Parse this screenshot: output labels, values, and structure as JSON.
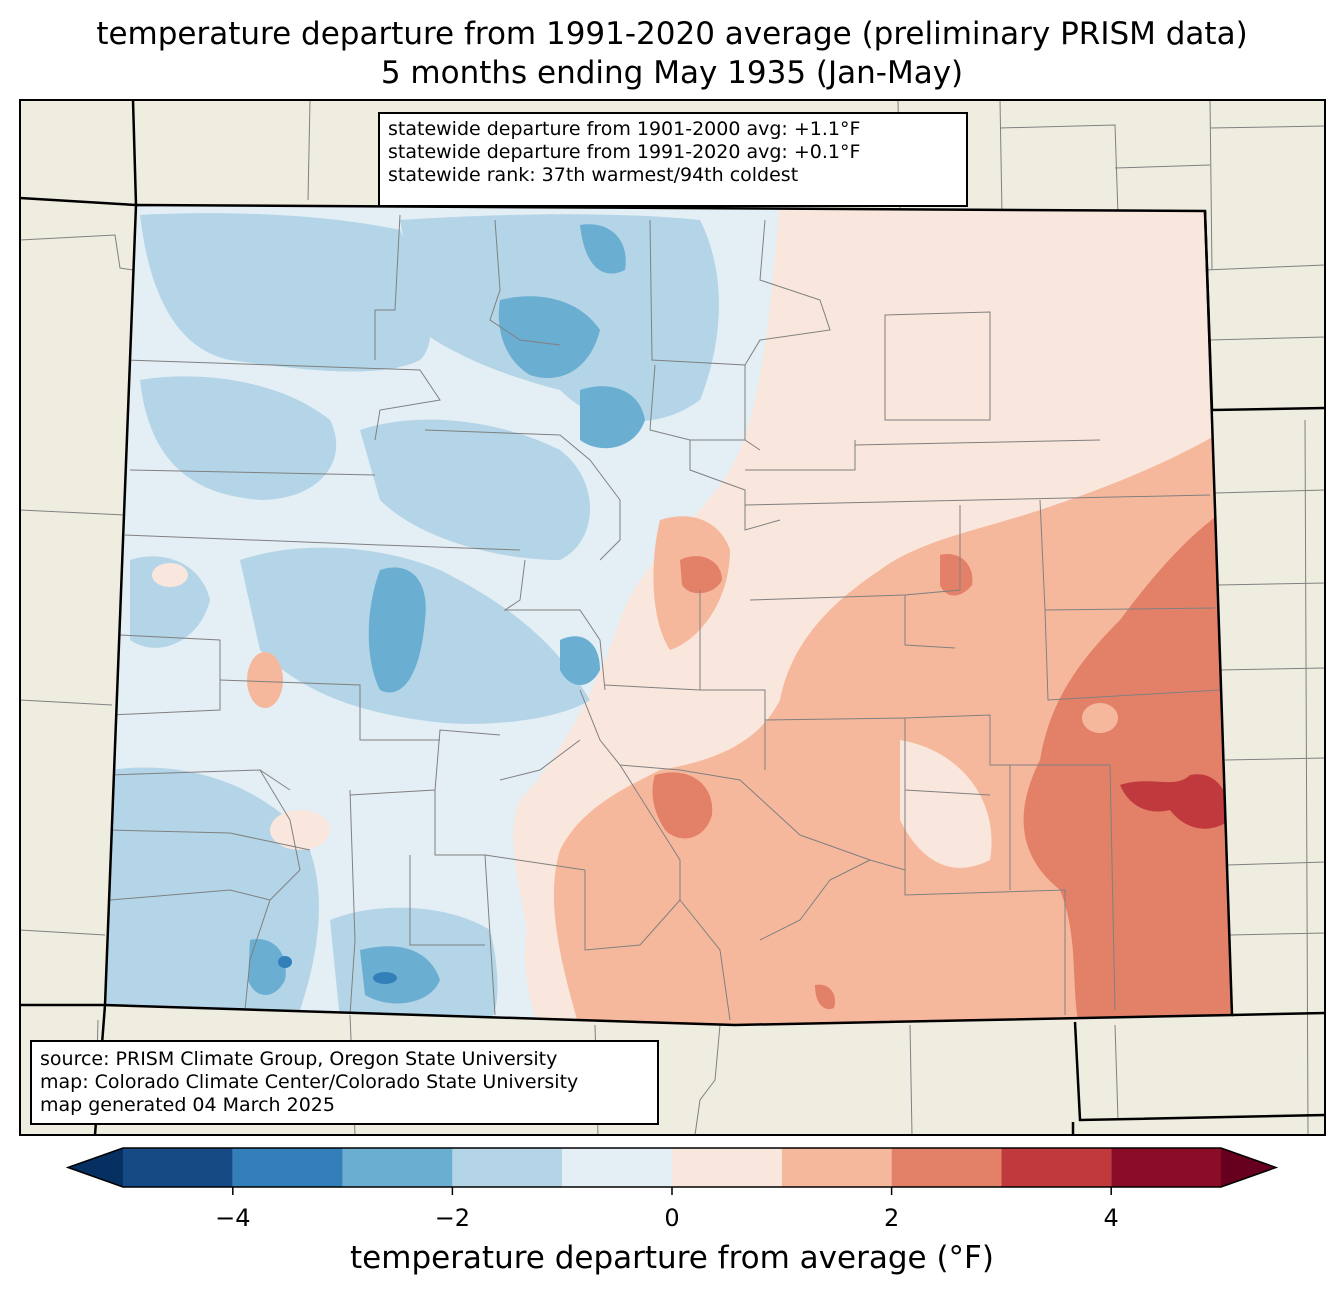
{
  "title": {
    "line1": "temperature departure from 1991-2020 average (preliminary PRISM data)",
    "line2": "5 months ending May 1935 (Jan-May)"
  },
  "stats_box": {
    "line1": "statewide departure from 1901-2000 avg: +1.1°F",
    "line2": "statewide departure from 1991-2020 avg: +0.1°F",
    "line3": "statewide rank: 37th warmest/94th coldest"
  },
  "source_box": {
    "line1": "source: PRISM Climate Group, Oregon State University",
    "line2": "map: Colorado Climate Center/Colorado State University",
    "line3": "map generated 04 March 2025"
  },
  "colorbar": {
    "label": "temperature departure from average (°F)",
    "ticks": [
      "−4",
      "−2",
      "0",
      "2",
      "4"
    ],
    "tick_values": [
      -4,
      -2,
      0,
      2,
      4
    ],
    "bins": [
      {
        "from": -6,
        "to": -5,
        "color": "#053061"
      },
      {
        "from": -5,
        "to": -4,
        "color": "#164a84"
      },
      {
        "from": -4,
        "to": -3,
        "color": "#327fb9"
      },
      {
        "from": -3,
        "to": -2,
        "color": "#6aaed2"
      },
      {
        "from": -2,
        "to": -1,
        "color": "#b3d5e7"
      },
      {
        "from": -1,
        "to": 0,
        "color": "#e4eef5"
      },
      {
        "from": 0,
        "to": 1,
        "color": "#f9e6dc"
      },
      {
        "from": 1,
        "to": 2,
        "color": "#f6b89c"
      },
      {
        "from": 2,
        "to": 3,
        "color": "#e38068"
      },
      {
        "from": 3,
        "to": 4,
        "color": "#c0393d"
      },
      {
        "from": 4,
        "to": 5,
        "color": "#8b0c27"
      },
      {
        "from": 5,
        "to": 6,
        "color": "#67001f"
      }
    ]
  },
  "colors": {
    "background_land": "#efede0",
    "state_border": "#000000",
    "county_border": "#808080"
  }
}
